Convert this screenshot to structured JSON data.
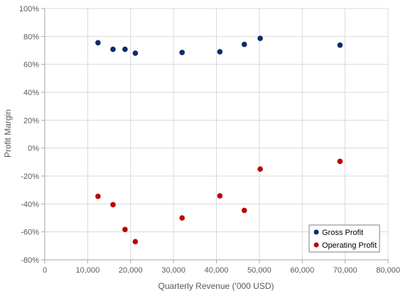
{
  "chart_data": {
    "type": "scatter",
    "title": "",
    "xlabel": "Quarterly Revenue ('000 USD)",
    "ylabel": "Profit Margin",
    "xlim": [
      0,
      80000
    ],
    "ylim": [
      -80,
      100
    ],
    "x_ticks": [
      0,
      10000,
      20000,
      30000,
      40000,
      50000,
      60000,
      70000,
      80000
    ],
    "x_tick_labels": [
      "0",
      "10,000",
      "20,000",
      "30,000",
      "40,000",
      "50,000",
      "60,000",
      "70,000",
      "80,000"
    ],
    "y_ticks": [
      -80,
      -60,
      -40,
      -20,
      0,
      20,
      40,
      60,
      80,
      100
    ],
    "y_tick_labels": [
      "-80%",
      "-60%",
      "-40%",
      "-20%",
      "0%",
      "20%",
      "40%",
      "60%",
      "80%",
      "100%"
    ],
    "grid": true,
    "legend_position": "bottom-right",
    "series": [
      {
        "name": "Gross Profit",
        "color": "#0d2a6b",
        "x": [
          12400,
          15900,
          18700,
          21100,
          32000,
          40800,
          46500,
          50200,
          68800
        ],
        "y": [
          75.5,
          70.8,
          70.8,
          68.0,
          68.5,
          69.0,
          74.3,
          78.6,
          73.8
        ]
      },
      {
        "name": "Operating Profit",
        "color": "#c00000",
        "x": [
          12400,
          15900,
          18700,
          21100,
          32000,
          40800,
          46500,
          50200,
          68800
        ],
        "y": [
          -34.5,
          -40.5,
          -58.3,
          -67.0,
          -50.0,
          -34.2,
          -44.6,
          -15.0,
          -9.5
        ]
      }
    ]
  }
}
